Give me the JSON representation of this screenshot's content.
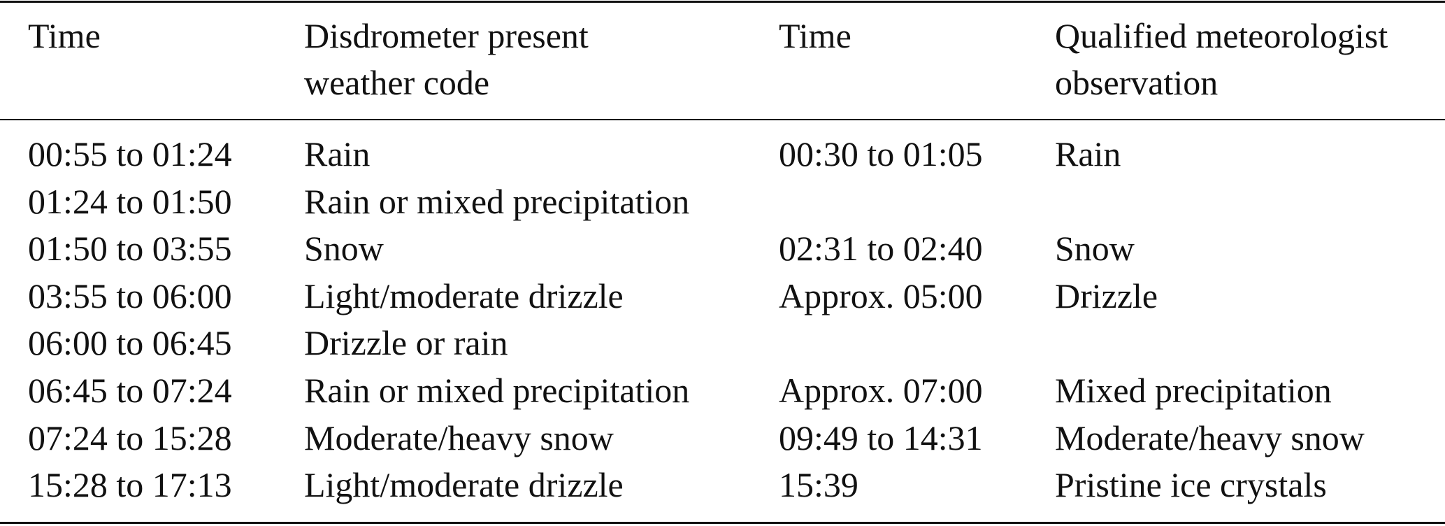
{
  "table": {
    "header": [
      [
        "Time"
      ],
      [
        "Disdrometer present",
        "weather code"
      ],
      [
        "Time"
      ],
      [
        "Qualified meteorologist",
        "observation"
      ]
    ],
    "rows": [
      [
        "00:55 to 01:24",
        "Rain",
        "00:30 to 01:05",
        "Rain"
      ],
      [
        "01:24 to 01:50",
        "Rain or mixed precipitation",
        null,
        null
      ],
      [
        "01:50 to 03:55",
        "Snow",
        "02:31 to 02:40",
        "Snow"
      ],
      [
        "03:55 to 06:00",
        "Light/moderate drizzle",
        "Approx. 05:00",
        "Drizzle"
      ],
      [
        "06:00 to 06:45",
        "Drizzle or rain",
        null,
        null
      ],
      [
        "06:45 to 07:24",
        "Rain or mixed precipitation",
        "Approx. 07:00",
        "Mixed precipitation"
      ],
      [
        "07:24 to 15:28",
        "Moderate/heavy snow",
        "09:49 to 14:31",
        "Moderate/heavy snow"
      ],
      [
        "15:28 to 17:13",
        "Light/moderate drizzle",
        "15:39",
        "Pristine ice crystals"
      ]
    ]
  }
}
